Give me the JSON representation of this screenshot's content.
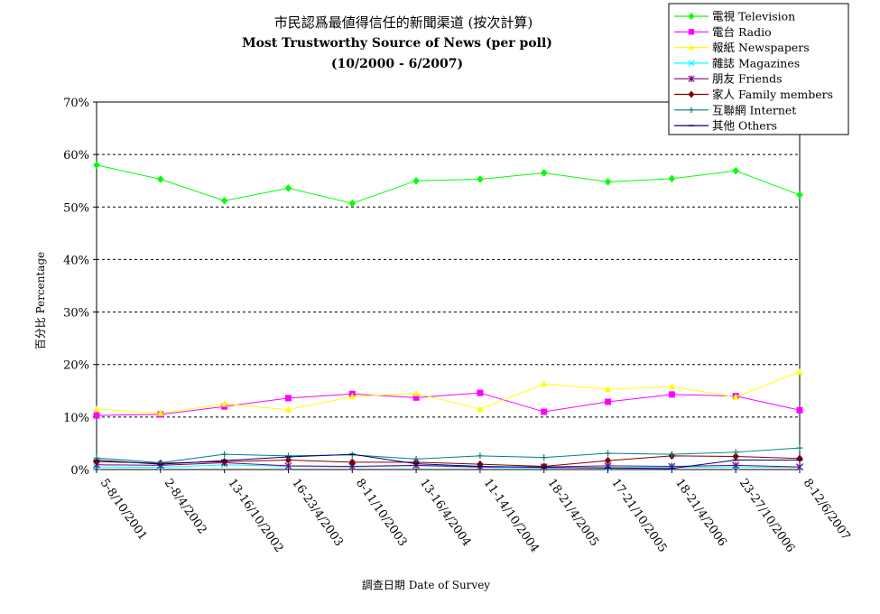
{
  "chart_data": {
    "type": "line",
    "title": "市民認爲最値得信任的新聞渠道 (按次計算)",
    "subtitle": "Most Trustworthy Source of News (per poll)",
    "subtitle2": "(10/2000 - 6/2007)",
    "xlabel": "調查日期 Date of Survey",
    "ylabel": "百分比 Percentage",
    "ylim": [
      0,
      70
    ],
    "yticks": [
      "0%",
      "10%",
      "20%",
      "30%",
      "40%",
      "50%",
      "60%",
      "70%"
    ],
    "grid": true,
    "legend_position": "top-right",
    "categories": [
      "5-8/10/2001",
      "2-8/4/2002",
      "13-16/10/2002",
      "16-23/4/2003",
      "8-11/10/2003",
      "13-16/4/2004",
      "11-14/10/2004",
      "18-21/4/2005",
      "17-21/10/2005",
      "18-21/4/2006",
      "23-27/10/2006",
      "8-12/6/2007"
    ],
    "series": [
      {
        "name": "電視 Television",
        "color": "#00ff00",
        "marker": "diamond",
        "values": [
          58.0,
          55.3,
          51.2,
          53.6,
          50.7,
          55.0,
          55.3,
          56.5,
          54.8,
          55.4,
          56.9,
          52.3
        ]
      },
      {
        "name": "電台 Radio",
        "color": "#ff00ff",
        "marker": "square",
        "values": [
          10.3,
          10.5,
          12.0,
          13.6,
          14.4,
          13.7,
          14.6,
          11.0,
          12.9,
          14.3,
          14.0,
          11.3
        ]
      },
      {
        "name": "報紙 Newspapers",
        "color": "#ffff00",
        "marker": "triangle",
        "values": [
          11.5,
          10.7,
          12.5,
          11.4,
          13.9,
          14.5,
          11.5,
          16.3,
          15.3,
          15.8,
          13.8,
          18.6
        ]
      },
      {
        "name": "雜誌 Magazines",
        "color": "#00ffff",
        "marker": "x",
        "values": [
          0.5,
          0.4,
          0.9,
          0.6,
          0.5,
          0.7,
          0.4,
          0.3,
          0.4,
          0.4,
          0.5,
          0.4
        ]
      },
      {
        "name": "朋友 Friends",
        "color": "#800080",
        "marker": "star",
        "values": [
          0.9,
          0.8,
          1.3,
          0.7,
          0.6,
          0.8,
          0.5,
          0.5,
          0.7,
          0.6,
          0.8,
          0.5
        ]
      },
      {
        "name": "家人 Family members",
        "color": "#800000",
        "marker": "diamond",
        "values": [
          1.5,
          1.2,
          1.5,
          1.8,
          1.4,
          1.4,
          1.0,
          0.6,
          1.7,
          2.6,
          2.5,
          2.1
        ]
      },
      {
        "name": "互聯網 Internet",
        "color": "#008080",
        "marker": "plus",
        "values": [
          2.2,
          1.3,
          2.9,
          2.6,
          2.8,
          2.0,
          2.6,
          2.3,
          3.1,
          2.9,
          3.3,
          4.1
        ]
      },
      {
        "name": "其他 Others",
        "color": "#000080",
        "marker": "dash",
        "values": [
          1.8,
          1.0,
          1.7,
          2.4,
          2.9,
          1.1,
          0.6,
          0.4,
          0.3,
          0.2,
          1.8,
          1.8
        ]
      }
    ]
  }
}
